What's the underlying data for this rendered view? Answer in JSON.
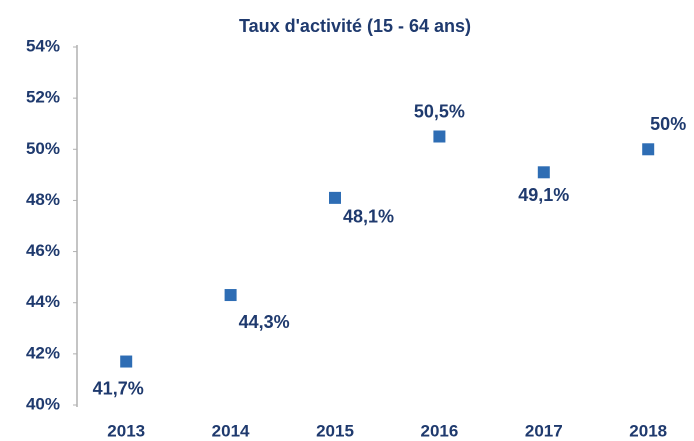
{
  "chart_data": {
    "type": "line",
    "title": "Taux d'activité (15 - 64 ans)",
    "categories": [
      "2013",
      "2014",
      "2015",
      "2016",
      "2017",
      "2018"
    ],
    "series": [
      {
        "color": "#2e6db4",
        "values": [
          41.7,
          44.3,
          48.1,
          50.5,
          49.1,
          50
        ],
        "value_labels": [
          "41,7%",
          "44,3%",
          "48,1%",
          "50,5%",
          "49,1%",
          "50%"
        ]
      }
    ],
    "ylim": [
      40,
      54
    ],
    "yticks": [
      {
        "value": 40,
        "label": "40%"
      },
      {
        "value": 42,
        "label": "42%"
      },
      {
        "value": 44,
        "label": "44%"
      },
      {
        "value": 46,
        "label": "46%"
      },
      {
        "value": 48,
        "label": "48%"
      },
      {
        "value": 50,
        "label": "50%"
      },
      {
        "value": 52,
        "label": "52%"
      },
      {
        "value": 54,
        "label": "54%"
      }
    ]
  }
}
